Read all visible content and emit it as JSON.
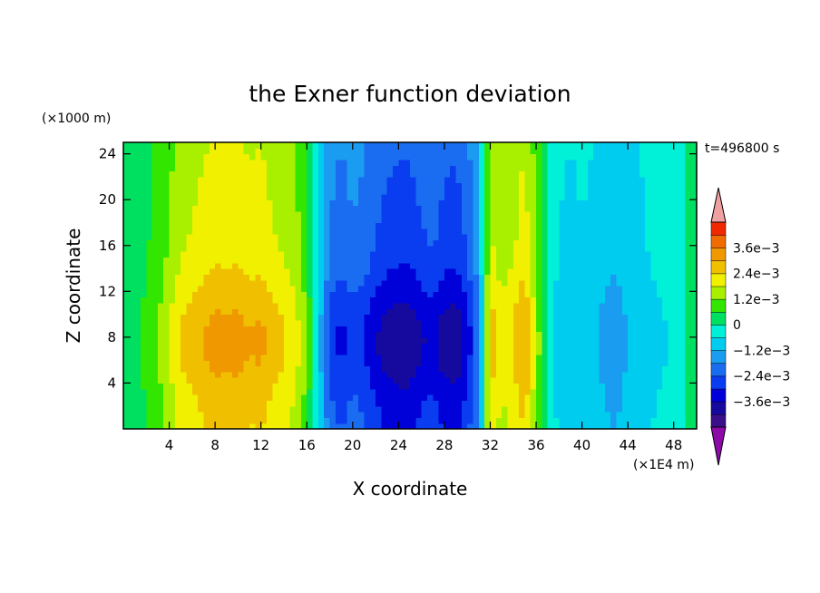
{
  "chart_data": {
    "type": "heatmap",
    "title": "the Exner function deviation",
    "xlabel": "X coordinate",
    "ylabel": "Z coordinate",
    "x_unit": "(×1E4 m)",
    "y_unit": "(×1000 m)",
    "time_label": "t=496800 s",
    "xlim": [
      0,
      50
    ],
    "ylim": [
      0,
      25
    ],
    "x_ticks": [
      4,
      8,
      12,
      16,
      20,
      24,
      28,
      32,
      36,
      40,
      44,
      48
    ],
    "x_tick_labels": [
      "4",
      "8",
      "12",
      "16",
      "20",
      "24",
      "28",
      "32",
      "36",
      "40",
      "44",
      "48"
    ],
    "y_ticks": [
      4,
      8,
      12,
      16,
      20,
      24
    ],
    "y_tick_labels": [
      "4",
      "8",
      "12",
      "16",
      "20",
      "24"
    ],
    "colorbar": {
      "levels": [
        -0.0042,
        -0.0036,
        -0.003,
        -0.0024,
        -0.0018,
        -0.0012,
        -0.0006,
        0,
        0.0006,
        0.0012,
        0.0018,
        0.0024,
        0.003,
        0.0036,
        0.0042
      ],
      "colors": [
        "#3b0f8a",
        "#160a9e",
        "#0000d8",
        "#0a3cf0",
        "#1a6cf0",
        "#1a9cf0",
        "#00ccf0",
        "#00f0d8",
        "#00e060",
        "#33e600",
        "#a8f000",
        "#f0f000",
        "#f0c000",
        "#f09800",
        "#f06c00",
        "#f02800"
      ],
      "under_color": "#8c0aa8",
      "over_color": "#f0a0a0",
      "labels": [
        "3.6e−3",
        "2.4e−3",
        "1.2e−3",
        "0",
        "−1.2e−3",
        "−2.4e−3",
        "−3.6e−3"
      ],
      "label_values": [
        0.0036,
        0.0024,
        0.0012,
        0,
        -0.0012,
        -0.0024,
        -0.0036
      ]
    },
    "field_profile_x": [
      0,
      1,
      2,
      3,
      4,
      5,
      6,
      7,
      8,
      9,
      10,
      11,
      12,
      13,
      14,
      15,
      16,
      17,
      18,
      19,
      20,
      21,
      22,
      23,
      24,
      25,
      26,
      27,
      28,
      29,
      30,
      31,
      32,
      33,
      34,
      35,
      36,
      37,
      38,
      39,
      40,
      41,
      42,
      43,
      44,
      45,
      46,
      47,
      48,
      49,
      50
    ],
    "field_profile_value": [
      0.0003,
      0.0003,
      0.0006,
      0.0009,
      0.0014,
      0.0019,
      0.0021,
      0.0023,
      0.0025,
      0.0024,
      0.0025,
      0.0023,
      0.0024,
      0.0021,
      0.0019,
      0.0016,
      0.0009,
      -0.0006,
      -0.0021,
      -0.0024,
      -0.0021,
      -0.0023,
      -0.0027,
      -0.003,
      -0.0031,
      -0.0031,
      -0.0028,
      -0.0026,
      -0.003,
      -0.0031,
      -0.0026,
      -0.0015,
      0.0021,
      0.0016,
      0.0019,
      0.0024,
      0.0013,
      -0.0002,
      -0.0007,
      -0.0008,
      -0.0007,
      -0.0008,
      -0.0011,
      -0.0012,
      -0.0009,
      -0.0008,
      -0.0006,
      -0.0005,
      -0.0004,
      0.0,
      0.0003
    ]
  }
}
